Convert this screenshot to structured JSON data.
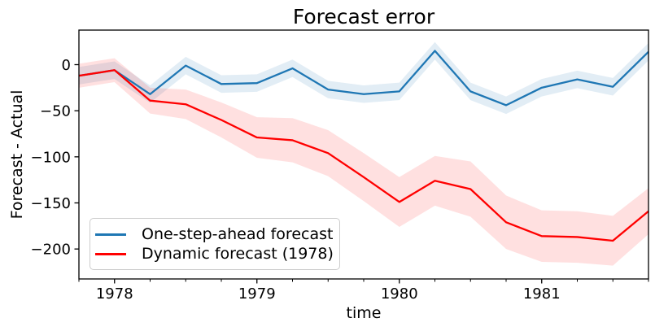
{
  "chart_data": {
    "type": "line",
    "title": "Forecast error",
    "xlabel": "time",
    "ylabel": "Forecast - Actual",
    "x": [
      1977.75,
      1978.0,
      1978.25,
      1978.5,
      1978.75,
      1979.0,
      1979.25,
      1979.5,
      1979.75,
      1980.0,
      1980.25,
      1980.5,
      1980.75,
      1981.0,
      1981.25,
      1981.5,
      1981.75
    ],
    "series": [
      {
        "name": "One-step-ahead forecast",
        "color": "#1f77b4",
        "band_color": "rgba(31,119,180,0.13)",
        "values": [
          -12,
          -6,
          -32,
          -1,
          -21,
          -20,
          -4,
          -27,
          -32,
          -29,
          15,
          -29,
          -44,
          -25,
          -16,
          -24,
          14
        ],
        "band_halfwidth": [
          9.5,
          9.5,
          9.5,
          9.5,
          9.5,
          9.5,
          9.5,
          9.5,
          9.5,
          9.5,
          9.5,
          9.5,
          9.5,
          9.5,
          9.5,
          9.5,
          9.5
        ]
      },
      {
        "name": "Dynamic forecast (1978)",
        "color": "#ff0000",
        "band_color": "rgba(255,0,0,0.12)",
        "values": [
          -12,
          -6,
          -39,
          -43,
          -60,
          -79,
          -82,
          -96,
          -122,
          -149,
          -126,
          -135,
          -171,
          -186,
          -187,
          -191,
          -159
        ],
        "band_halfwidth": [
          13,
          13,
          14,
          16,
          19,
          22,
          24,
          25,
          26,
          27,
          27,
          30,
          29,
          28,
          28,
          27,
          25
        ]
      }
    ],
    "xlim": [
      1977.75,
      1981.75
    ],
    "ylim": [
      -232.5,
      37.5
    ],
    "xticks": [
      1978,
      1979,
      1980,
      1981
    ],
    "xminor_step": 0.25,
    "yticks": [
      0,
      -50,
      -100,
      -150,
      -200
    ],
    "grid": false,
    "legend_position": "lower left",
    "line_width": 2.3,
    "frame_color": "#000000"
  }
}
